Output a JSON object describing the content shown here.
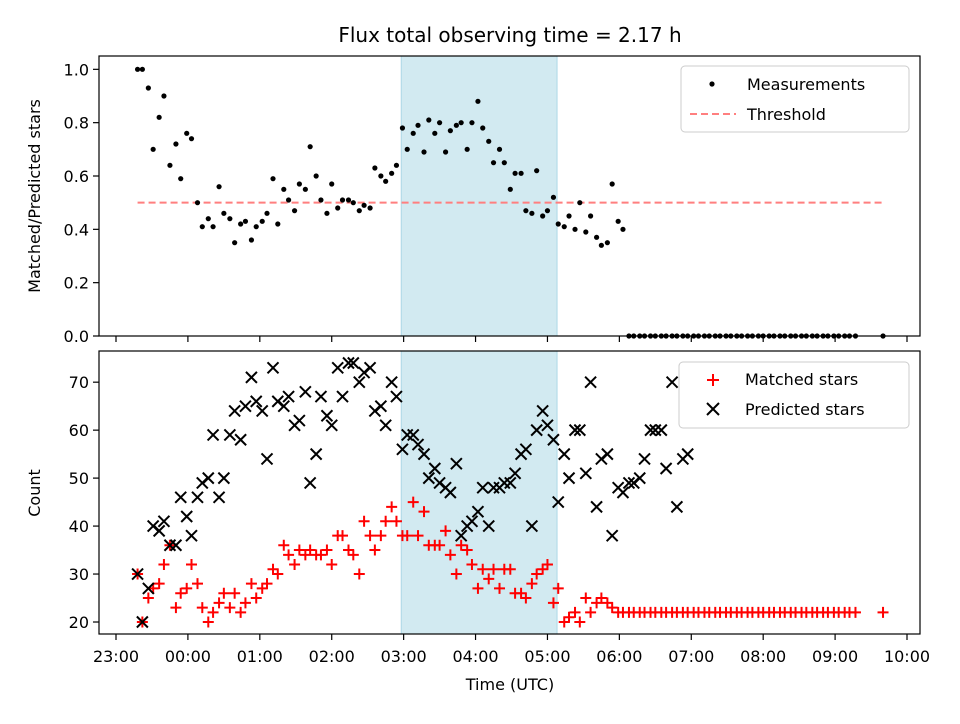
{
  "chart_data": {
    "title": "Flux total observing time = 2.17 h",
    "xlabel": "Time (UTC)",
    "x_ticks": [
      "23:00",
      "00:00",
      "01:00",
      "02:00",
      "03:00",
      "04:00",
      "05:00",
      "06:00",
      "07:00",
      "08:00",
      "09:00",
      "10:00"
    ],
    "highlight_span": {
      "start": "02:58",
      "end": "05:08",
      "color": "#add8e6"
    },
    "panels": [
      {
        "type": "scatter",
        "ylabel": "Matched/Predicted stars",
        "ylim": [
          0,
          1.05
        ],
        "y_ticks": [
          "0.0",
          "0.2",
          "0.4",
          "0.6",
          "0.8",
          "1.0"
        ],
        "legend_position": "top-right",
        "series": [
          {
            "name": "Measurements",
            "marker": "dot",
            "color": "#000000",
            "x": [
              "23:18",
              "23:22",
              "23:27",
              "23:31",
              "23:36",
              "23:40",
              "23:45",
              "23:50",
              "23:54",
              "23:59",
              "00:03",
              "00:08",
              "00:12",
              "00:17",
              "00:21",
              "00:26",
              "00:30",
              "00:35",
              "00:39",
              "00:44",
              "00:48",
              "00:53",
              "00:57",
              "01:02",
              "01:06",
              "01:11",
              "01:15",
              "01:20",
              "01:24",
              "01:29",
              "01:33",
              "01:38",
              "01:42",
              "01:47",
              "01:51",
              "01:56",
              "02:00",
              "02:05",
              "02:09",
              "02:14",
              "02:18",
              "02:23",
              "02:27",
              "02:32",
              "02:36",
              "02:41",
              "02:45",
              "02:50",
              "02:54",
              "02:59",
              "03:03",
              "03:08",
              "03:12",
              "03:17",
              "03:21",
              "03:26",
              "03:30",
              "03:35",
              "03:39",
              "03:44",
              "03:48",
              "03:53",
              "03:57",
              "04:02",
              "04:06",
              "04:11",
              "04:15",
              "04:20",
              "04:24",
              "04:29",
              "04:33",
              "04:38",
              "04:42",
              "04:47",
              "04:51",
              "04:56",
              "05:00",
              "05:05",
              "05:09",
              "05:14",
              "05:18",
              "05:23",
              "05:27",
              "05:32",
              "05:36",
              "05:41",
              "05:45",
              "05:50",
              "05:54",
              "05:59",
              "06:03",
              "06:08",
              "06:12",
              "06:17",
              "06:21",
              "06:26",
              "06:30",
              "06:35",
              "06:39",
              "06:44",
              "06:48",
              "06:53",
              "06:57",
              "07:02",
              "07:06",
              "07:11",
              "07:15",
              "07:20",
              "07:24",
              "07:29",
              "07:33",
              "07:38",
              "07:42",
              "07:47",
              "07:51",
              "07:56",
              "08:00",
              "08:05",
              "08:09",
              "08:14",
              "08:18",
              "08:23",
              "08:27",
              "08:32",
              "08:36",
              "08:41",
              "08:45",
              "08:50",
              "08:54",
              "08:59",
              "09:03",
              "09:08",
              "09:12",
              "09:17",
              "09:40"
            ],
            "y": [
              1.0,
              1.0,
              0.93,
              0.7,
              0.82,
              0.9,
              0.64,
              0.72,
              0.59,
              0.76,
              0.74,
              0.5,
              0.41,
              0.44,
              0.41,
              0.56,
              0.46,
              0.44,
              0.35,
              0.42,
              0.43,
              0.36,
              0.41,
              0.43,
              0.46,
              0.59,
              0.42,
              0.55,
              0.51,
              0.47,
              0.57,
              0.55,
              0.71,
              0.6,
              0.51,
              0.46,
              0.57,
              0.48,
              0.51,
              0.51,
              0.5,
              0.47,
              0.49,
              0.48,
              0.63,
              0.6,
              0.58,
              0.61,
              0.64,
              0.78,
              0.7,
              0.76,
              0.79,
              0.69,
              0.81,
              0.76,
              0.8,
              0.69,
              0.77,
              0.79,
              0.8,
              0.7,
              0.8,
              0.88,
              0.78,
              0.73,
              0.65,
              0.7,
              0.65,
              0.55,
              0.61,
              0.61,
              0.47,
              0.46,
              0.62,
              0.45,
              0.47,
              0.52,
              0.42,
              0.41,
              0.45,
              0.4,
              0.5,
              0.39,
              0.45,
              0.37,
              0.34,
              0.35,
              0.57,
              0.43,
              0.4,
              0,
              0,
              0,
              0,
              0,
              0,
              0,
              0,
              0,
              0,
              0,
              0,
              0,
              0,
              0,
              0,
              0,
              0,
              0,
              0,
              0,
              0,
              0,
              0,
              0,
              0,
              0,
              0,
              0,
              0,
              0,
              0,
              0,
              0,
              0,
              0,
              0,
              0,
              0,
              0,
              0,
              0,
              0,
              0
            ]
          },
          {
            "name": "Threshold",
            "marker": "dashed-line",
            "color": "#ff7f7f",
            "x": [
              "23:18",
              "09:40"
            ],
            "y": [
              0.5,
              0.5
            ]
          }
        ]
      },
      {
        "type": "scatter",
        "ylabel": "Count",
        "ylim": [
          17.5,
          76.5
        ],
        "y_ticks": [
          "20",
          "30",
          "40",
          "50",
          "60",
          "70"
        ],
        "legend_position": "top-right",
        "series": [
          {
            "name": "Matched stars",
            "marker": "plus",
            "color": "#ff0000",
            "x": [
              "23:18",
              "23:22",
              "23:27",
              "23:31",
              "23:36",
              "23:40",
              "23:45",
              "23:50",
              "23:54",
              "23:59",
              "00:03",
              "00:08",
              "00:12",
              "00:17",
              "00:21",
              "00:26",
              "00:30",
              "00:35",
              "00:39",
              "00:44",
              "00:48",
              "00:53",
              "00:57",
              "01:02",
              "01:06",
              "01:11",
              "01:15",
              "01:20",
              "01:24",
              "01:29",
              "01:33",
              "01:38",
              "01:42",
              "01:47",
              "01:51",
              "01:56",
              "02:00",
              "02:05",
              "02:09",
              "02:14",
              "02:18",
              "02:23",
              "02:27",
              "02:32",
              "02:36",
              "02:41",
              "02:45",
              "02:50",
              "02:54",
              "02:59",
              "03:03",
              "03:08",
              "03:12",
              "03:17",
              "03:21",
              "03:26",
              "03:30",
              "03:35",
              "03:39",
              "03:44",
              "03:48",
              "03:53",
              "03:57",
              "04:02",
              "04:06",
              "04:11",
              "04:15",
              "04:20",
              "04:24",
              "04:29",
              "04:33",
              "04:38",
              "04:42",
              "04:47",
              "04:51",
              "04:56",
              "05:00",
              "05:05",
              "05:09",
              "05:14",
              "05:18",
              "05:23",
              "05:27",
              "05:32",
              "05:36",
              "05:41",
              "05:45",
              "05:50",
              "05:54",
              "05:59",
              "06:03",
              "06:08",
              "06:12",
              "06:17",
              "06:21",
              "06:26",
              "06:30",
              "06:35",
              "06:39",
              "06:44",
              "06:48",
              "06:53",
              "06:57",
              "07:02",
              "07:06",
              "07:11",
              "07:15",
              "07:20",
              "07:24",
              "07:29",
              "07:33",
              "07:38",
              "07:42",
              "07:47",
              "07:51",
              "07:56",
              "08:00",
              "08:05",
              "08:09",
              "08:14",
              "08:18",
              "08:23",
              "08:27",
              "08:32",
              "08:36",
              "08:41",
              "08:45",
              "08:50",
              "08:54",
              "08:59",
              "09:03",
              "09:08",
              "09:12",
              "09:17",
              "09:40"
            ],
            "y": [
              30,
              20,
              25,
              27,
              28,
              32,
              36,
              23,
              26,
              27,
              32,
              28,
              23,
              20,
              22,
              24,
              26,
              23,
              26,
              22,
              24,
              28,
              25,
              27,
              28,
              31,
              30,
              36,
              34,
              32,
              35,
              34,
              35,
              34,
              34,
              35,
              32,
              38,
              38,
              35,
              34,
              30,
              41,
              38,
              35,
              38,
              41,
              44,
              41,
              38,
              38,
              45,
              38,
              43,
              36,
              36,
              36,
              39,
              34,
              30,
              36,
              35,
              32,
              27,
              31,
              29,
              31,
              27,
              31,
              31,
              26,
              26,
              25,
              28,
              30,
              31,
              32,
              24,
              27,
              20,
              21,
              22,
              20,
              25,
              22,
              24,
              25,
              24,
              23,
              22,
              22,
              22,
              22,
              22,
              22,
              22,
              22,
              22,
              22,
              22,
              22,
              22,
              22,
              22,
              22,
              22,
              22,
              22,
              22,
              22,
              22,
              22,
              22,
              22,
              22,
              22,
              22,
              22,
              22,
              22,
              22,
              22,
              22,
              22,
              22,
              22,
              22,
              22,
              22,
              22,
              22,
              22,
              22,
              22,
              22
            ]
          },
          {
            "name": "Predicted stars",
            "marker": "x",
            "color": "#000000",
            "x": [
              "23:18",
              "23:22",
              "23:27",
              "23:31",
              "23:36",
              "23:40",
              "23:45",
              "23:50",
              "23:54",
              "23:59",
              "00:03",
              "00:08",
              "00:12",
              "00:17",
              "00:21",
              "00:26",
              "00:30",
              "00:35",
              "00:39",
              "00:44",
              "00:48",
              "00:53",
              "00:57",
              "01:02",
              "01:06",
              "01:11",
              "01:15",
              "01:20",
              "01:24",
              "01:29",
              "01:33",
              "01:38",
              "01:42",
              "01:47",
              "01:51",
              "01:56",
              "02:00",
              "02:05",
              "02:09",
              "02:14",
              "02:18",
              "02:23",
              "02:27",
              "02:32",
              "02:36",
              "02:41",
              "02:45",
              "02:50",
              "02:54",
              "02:59",
              "03:03",
              "03:08",
              "03:12",
              "03:17",
              "03:21",
              "03:26",
              "03:30",
              "03:35",
              "03:39",
              "03:44",
              "03:48",
              "03:53",
              "03:57",
              "04:02",
              "04:06",
              "04:11",
              "04:15",
              "04:20",
              "04:24",
              "04:29",
              "04:33",
              "04:38",
              "04:42",
              "04:47",
              "04:51",
              "04:56",
              "05:00",
              "05:05",
              "05:09",
              "05:14",
              "05:18",
              "05:23",
              "05:27",
              "05:32",
              "05:36",
              "05:41",
              "05:45",
              "05:50",
              "05:54",
              "05:59",
              "06:03",
              "06:08",
              "06:12",
              "06:17",
              "06:21",
              "06:26",
              "06:30",
              "06:35",
              "06:39",
              "06:44",
              "06:48",
              "06:53",
              "06:57"
            ],
            "y": [
              30,
              20,
              27,
              40,
              39,
              41,
              36,
              36,
              46,
              42,
              38,
              46,
              49,
              50,
              59,
              46,
              50,
              59,
              64,
              58,
              65,
              71,
              66,
              64,
              54,
              73,
              66,
              65,
              67,
              61,
              62,
              68,
              49,
              55,
              67,
              63,
              61,
              73,
              67,
              74,
              74,
              70,
              72,
              73,
              64,
              65,
              61,
              70,
              67,
              56,
              59,
              59,
              57,
              55,
              50,
              52,
              49,
              48,
              47,
              53,
              38,
              40,
              41,
              43,
              48,
              40,
              48,
              48,
              49,
              49,
              51,
              55,
              56,
              40,
              60,
              64,
              61,
              58,
              45,
              55,
              50,
              60,
              60,
              51,
              70,
              44,
              54,
              55,
              38,
              48,
              47,
              49,
              49,
              50,
              54,
              60,
              60,
              60,
              52,
              70,
              44,
              54,
              55
            ]
          }
        ]
      }
    ]
  }
}
